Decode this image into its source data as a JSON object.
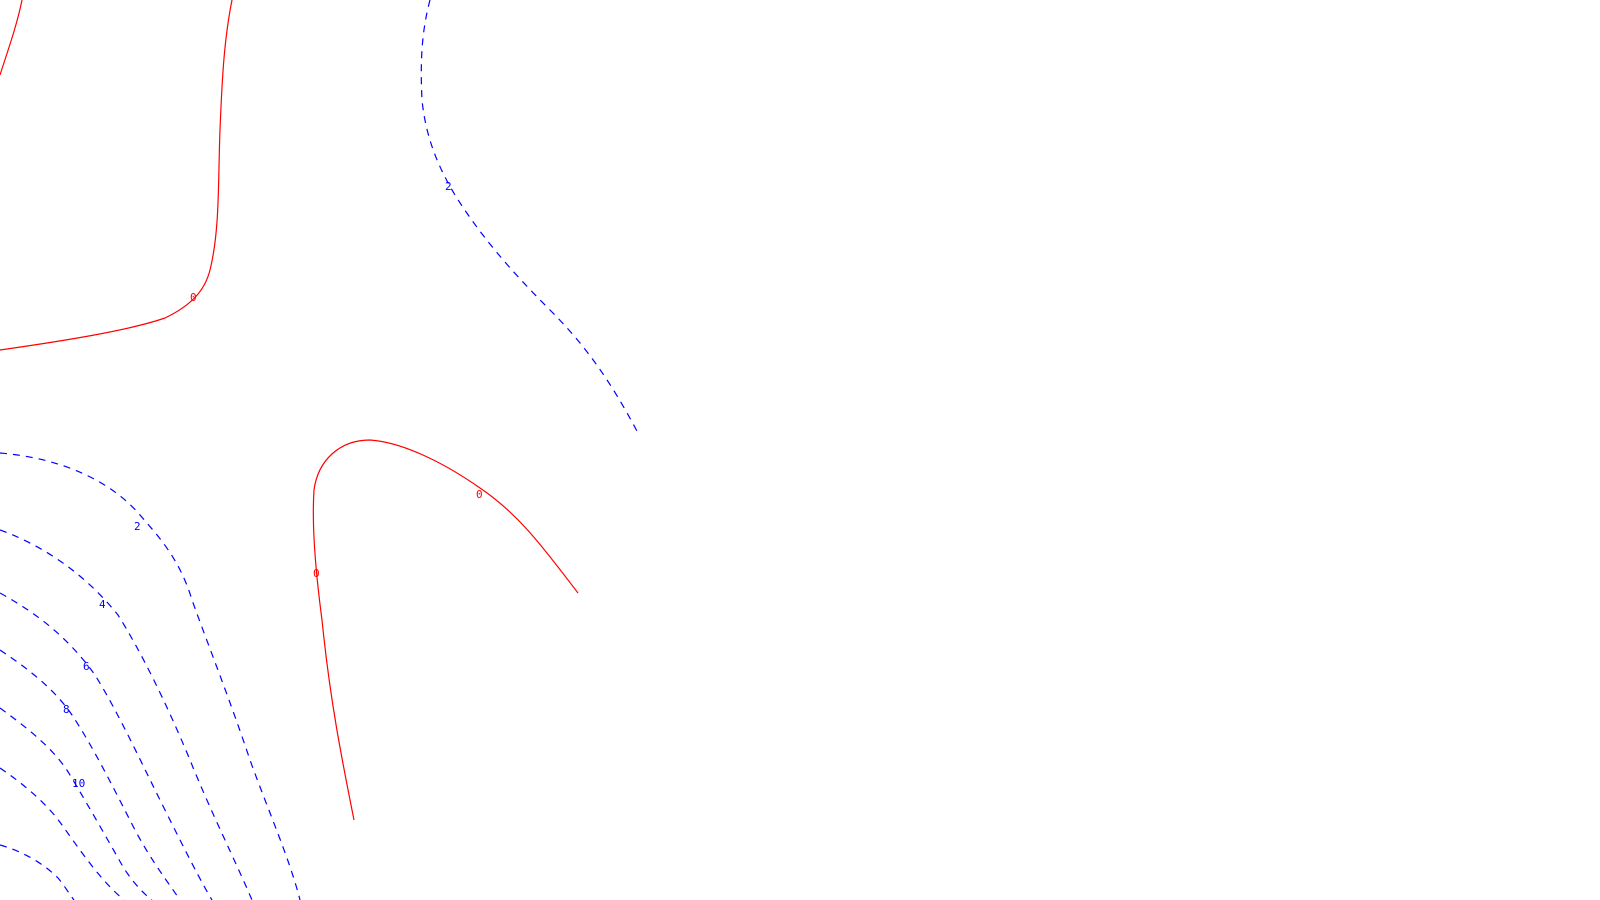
{
  "chart_data": {
    "type": "contour",
    "title": "",
    "xlabel": "",
    "ylabel": "",
    "grid": false,
    "legend": "none",
    "colors": {
      "zero": "#ff0000",
      "positive": "#0000ff"
    },
    "levels": [
      {
        "value": 0,
        "label": "0",
        "style": "solid",
        "color": "#ff0000"
      },
      {
        "value": 2,
        "label": "2",
        "style": "dashed",
        "color": "#0000ff"
      },
      {
        "value": 4,
        "label": "4",
        "style": "dashed",
        "color": "#0000ff"
      },
      {
        "value": 6,
        "label": "6",
        "style": "dashed",
        "color": "#0000ff"
      },
      {
        "value": 8,
        "label": "8",
        "style": "dashed",
        "color": "#0000ff"
      },
      {
        "value": 10,
        "label": "10",
        "style": "dashed",
        "color": "#0000ff"
      },
      {
        "value": 12,
        "label": "",
        "style": "dashed",
        "color": "#0000ff"
      },
      {
        "value": 14,
        "label": "",
        "style": "dashed",
        "color": "#0000ff"
      }
    ]
  }
}
